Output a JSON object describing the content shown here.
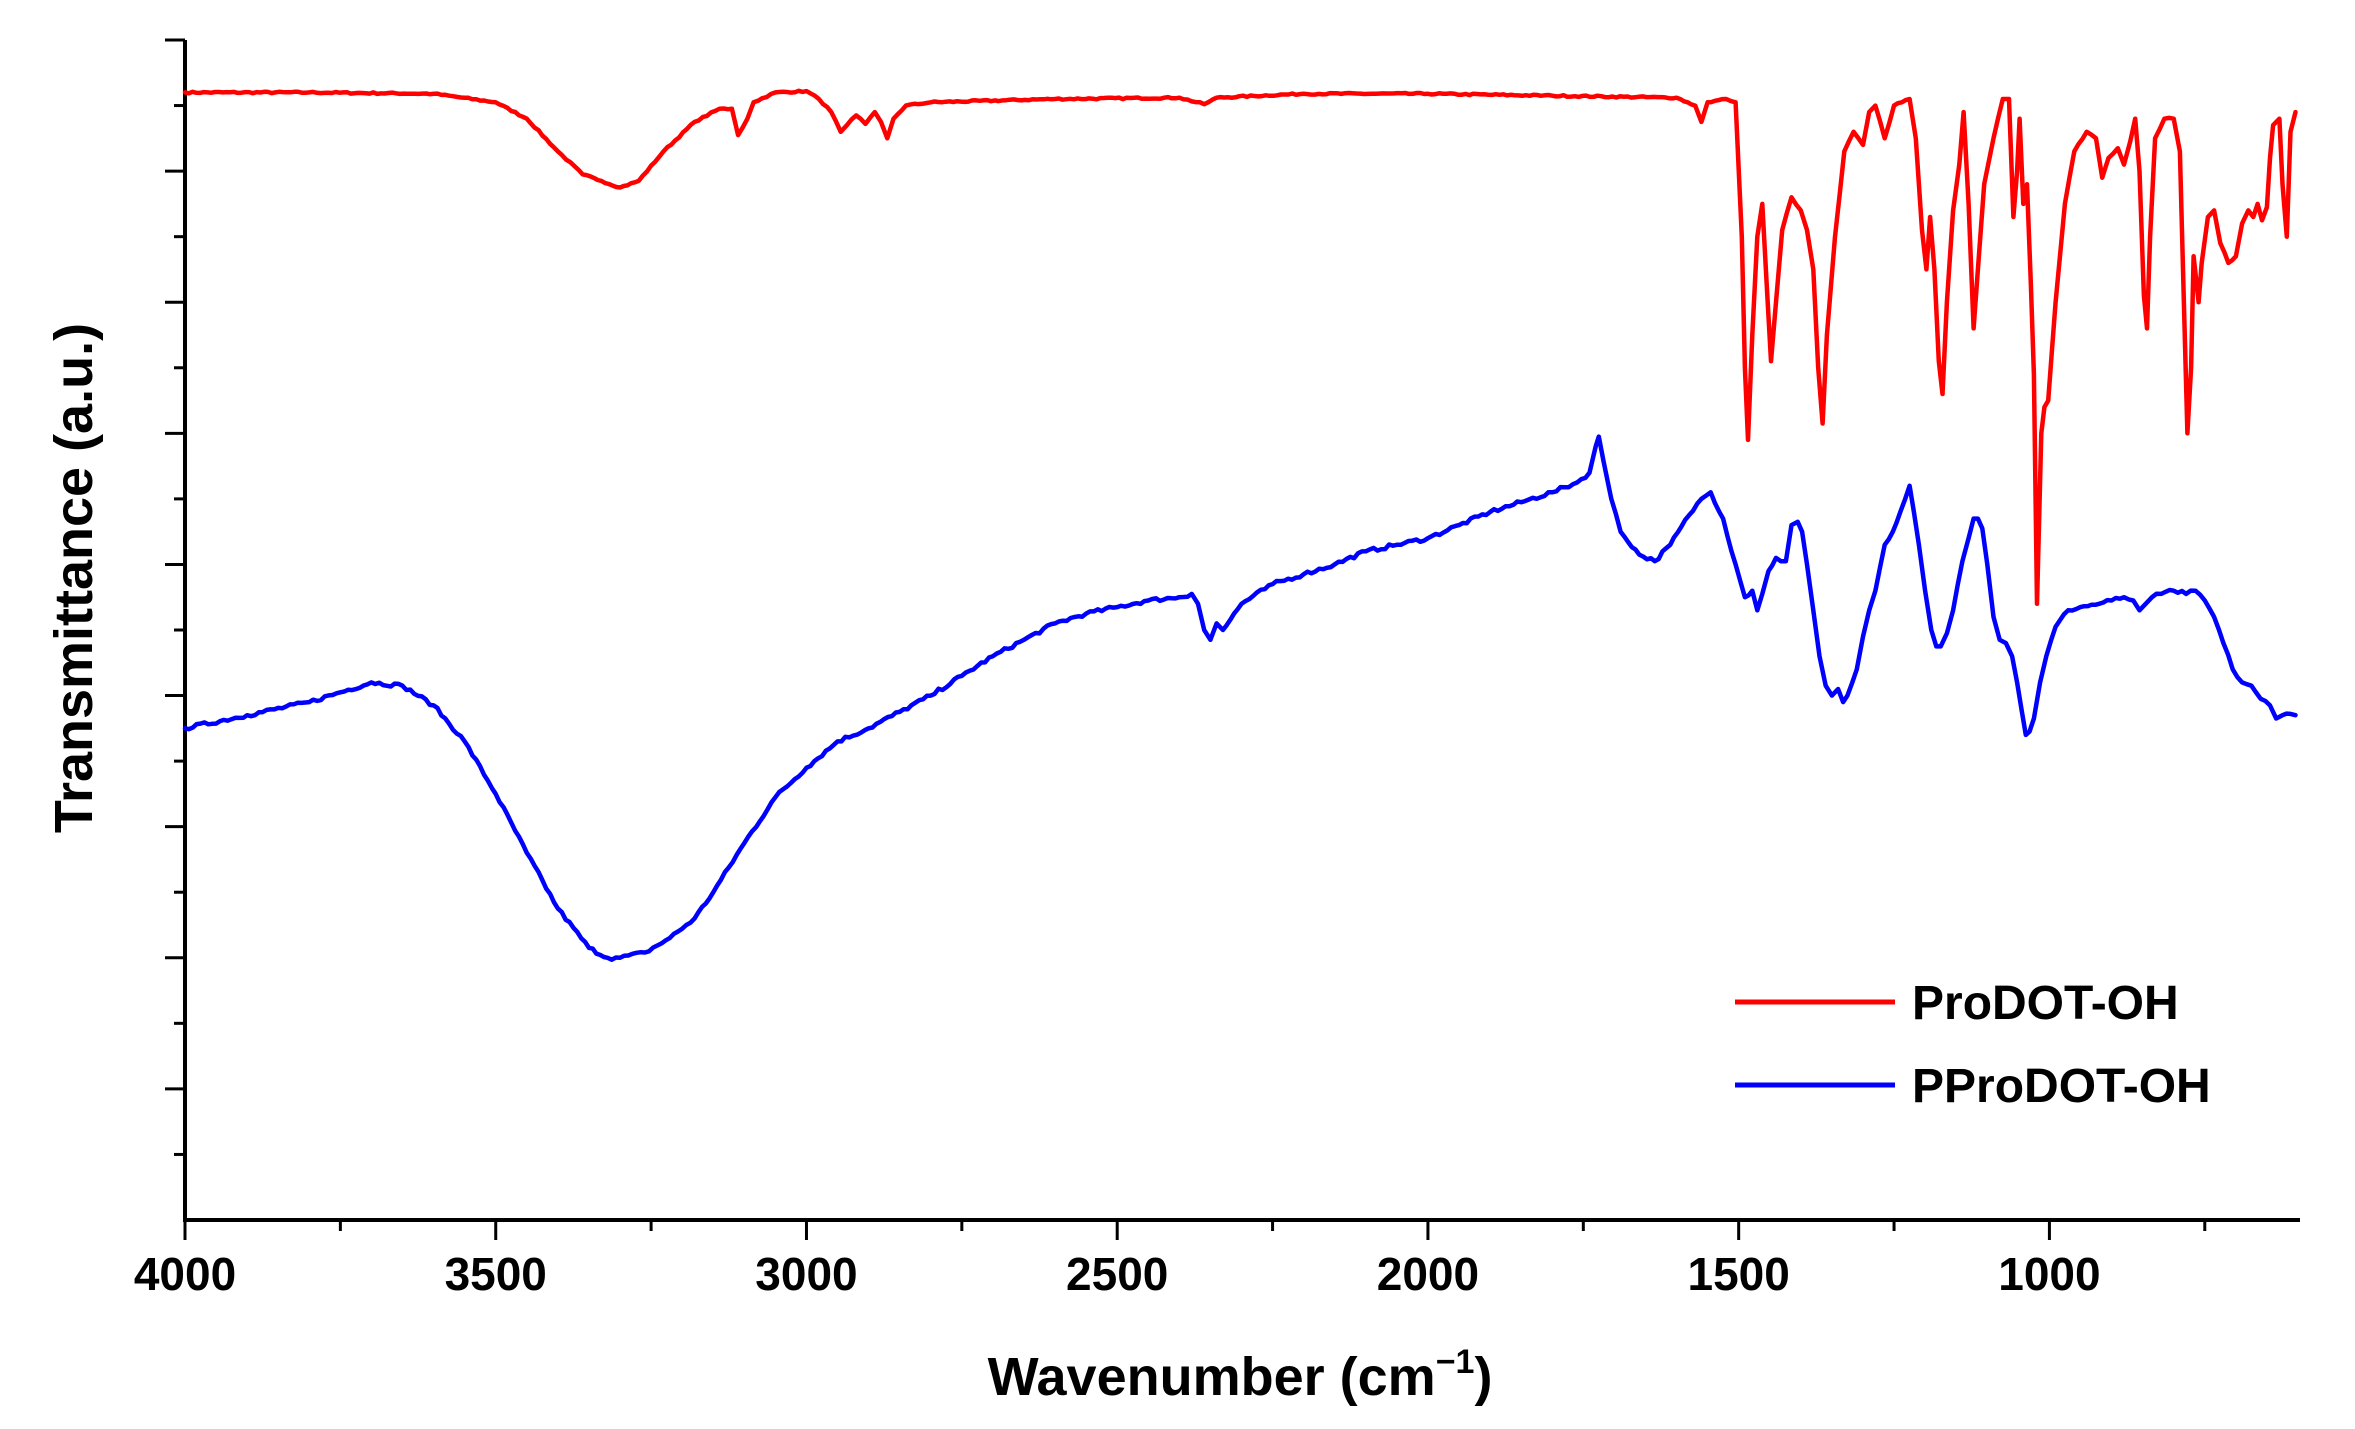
{
  "chart_data": {
    "type": "line",
    "title": "",
    "xlabel": "Wavenumber (cm",
    "xlabel_sup": "−1",
    "xlabel_close": ")",
    "ylabel": "Transmittance (a.u.)",
    "xlim": [
      4000,
      600
    ],
    "ylim": [
      0,
      18
    ],
    "x_reversed": true,
    "y_tick_labels_shown": false,
    "x_ticks": [
      4000,
      3500,
      3000,
      2500,
      2000,
      1500,
      1000
    ],
    "x_tick_labels": [
      "4000",
      "3500",
      "3000",
      "2500",
      "2000",
      "1500",
      "1000"
    ],
    "y_major_ticks": [
      2,
      4,
      6,
      8,
      10,
      12,
      14,
      16,
      18
    ],
    "y_minor_ticks": [
      1,
      3,
      5,
      7,
      9,
      11,
      13,
      15,
      17
    ],
    "legend_position": "bottom-right",
    "series": [
      {
        "name": "ProDOT-OH",
        "color": "#ff0000",
        "points": [
          [
            4000,
            17.2
          ],
          [
            3800,
            17.2
          ],
          [
            3600,
            17.18
          ],
          [
            3500,
            17.05
          ],
          [
            3450,
            16.8
          ],
          [
            3400,
            16.3
          ],
          [
            3360,
            15.95
          ],
          [
            3330,
            15.85
          ],
          [
            3300,
            15.75
          ],
          [
            3270,
            15.85
          ],
          [
            3230,
            16.3
          ],
          [
            3180,
            16.75
          ],
          [
            3140,
            16.95
          ],
          [
            3120,
            16.95
          ],
          [
            3110,
            16.55
          ],
          [
            3095,
            16.8
          ],
          [
            3085,
            17.05
          ],
          [
            3050,
            17.2
          ],
          [
            3000,
            17.22
          ],
          [
            2980,
            17.1
          ],
          [
            2960,
            16.9
          ],
          [
            2945,
            16.6
          ],
          [
            2935,
            16.7
          ],
          [
            2920,
            16.85
          ],
          [
            2905,
            16.72
          ],
          [
            2890,
            16.9
          ],
          [
            2880,
            16.75
          ],
          [
            2870,
            16.5
          ],
          [
            2860,
            16.8
          ],
          [
            2840,
            17.0
          ],
          [
            2800,
            17.05
          ],
          [
            2600,
            17.1
          ],
          [
            2400,
            17.12
          ],
          [
            2360,
            17.02
          ],
          [
            2340,
            17.12
          ],
          [
            2200,
            17.18
          ],
          [
            2000,
            17.18
          ],
          [
            1800,
            17.15
          ],
          [
            1600,
            17.12
          ],
          [
            1570,
            17.0
          ],
          [
            1560,
            16.75
          ],
          [
            1550,
            17.05
          ],
          [
            1520,
            17.1
          ],
          [
            1505,
            17.05
          ],
          [
            1495,
            15.0
          ],
          [
            1490,
            13.0
          ],
          [
            1485,
            11.9
          ],
          [
            1478,
            13.5
          ],
          [
            1470,
            15.0
          ],
          [
            1462,
            15.5
          ],
          [
            1455,
            14.3
          ],
          [
            1448,
            13.1
          ],
          [
            1440,
            14.0
          ],
          [
            1430,
            15.1
          ],
          [
            1415,
            15.6
          ],
          [
            1400,
            15.4
          ],
          [
            1390,
            15.1
          ],
          [
            1380,
            14.5
          ],
          [
            1372,
            13.0
          ],
          [
            1365,
            12.15
          ],
          [
            1358,
            13.5
          ],
          [
            1345,
            15.0
          ],
          [
            1330,
            16.3
          ],
          [
            1315,
            16.6
          ],
          [
            1300,
            16.4
          ],
          [
            1290,
            16.9
          ],
          [
            1280,
            17.0
          ],
          [
            1265,
            16.5
          ],
          [
            1250,
            17.0
          ],
          [
            1225,
            17.1
          ],
          [
            1215,
            16.5
          ],
          [
            1205,
            15.1
          ],
          [
            1198,
            14.5
          ],
          [
            1192,
            15.3
          ],
          [
            1185,
            14.5
          ],
          [
            1178,
            13.1
          ],
          [
            1172,
            12.6
          ],
          [
            1165,
            14.0
          ],
          [
            1155,
            15.4
          ],
          [
            1145,
            16.1
          ],
          [
            1138,
            16.9
          ],
          [
            1130,
            15.5
          ],
          [
            1122,
            13.6
          ],
          [
            1115,
            14.5
          ],
          [
            1105,
            15.8
          ],
          [
            1090,
            16.5
          ],
          [
            1075,
            17.1
          ],
          [
            1065,
            17.1
          ],
          [
            1058,
            15.3
          ],
          [
            1052,
            16.0
          ],
          [
            1048,
            16.8
          ],
          [
            1042,
            15.5
          ],
          [
            1036,
            15.8
          ],
          [
            1030,
            14.3
          ],
          [
            1025,
            12.9
          ],
          [
            1020,
            9.4
          ],
          [
            1013,
            12.0
          ],
          [
            1008,
            12.4
          ],
          [
            1002,
            12.5
          ],
          [
            990,
            14.0
          ],
          [
            975,
            15.5
          ],
          [
            960,
            16.3
          ],
          [
            940,
            16.6
          ],
          [
            925,
            16.5
          ],
          [
            915,
            15.9
          ],
          [
            905,
            16.2
          ],
          [
            890,
            16.35
          ],
          [
            880,
            16.1
          ],
          [
            870,
            16.45
          ],
          [
            862,
            16.8
          ],
          [
            855,
            16.0
          ],
          [
            848,
            14.1
          ],
          [
            843,
            13.6
          ],
          [
            838,
            15.0
          ],
          [
            830,
            16.5
          ],
          [
            815,
            16.8
          ],
          [
            800,
            16.8
          ],
          [
            790,
            16.3
          ],
          [
            785,
            14.5
          ],
          [
            778,
            12.0
          ],
          [
            772,
            13.0
          ],
          [
            768,
            14.7
          ],
          [
            760,
            14.0
          ],
          [
            755,
            14.6
          ],
          [
            745,
            15.3
          ],
          [
            735,
            15.4
          ],
          [
            725,
            14.9
          ],
          [
            712,
            14.6
          ],
          [
            700,
            14.7
          ],
          [
            690,
            15.2
          ],
          [
            680,
            15.4
          ],
          [
            672,
            15.3
          ],
          [
            665,
            15.5
          ],
          [
            658,
            15.25
          ],
          [
            650,
            15.45
          ],
          [
            645,
            16.2
          ],
          [
            640,
            16.7
          ],
          [
            630,
            16.8
          ],
          [
            625,
            15.8
          ],
          [
            618,
            15.0
          ],
          [
            612,
            16.6
          ],
          [
            604,
            16.9
          ]
        ]
      },
      {
        "name": "PProDOT-OH",
        "color": "#0000ff",
        "points": [
          [
            4000,
            7.5
          ],
          [
            3900,
            7.7
          ],
          [
            3800,
            7.9
          ],
          [
            3750,
            8.05
          ],
          [
            3700,
            8.2
          ],
          [
            3650,
            8.15
          ],
          [
            3600,
            7.85
          ],
          [
            3550,
            7.3
          ],
          [
            3500,
            6.5
          ],
          [
            3450,
            5.6
          ],
          [
            3400,
            4.75
          ],
          [
            3350,
            4.15
          ],
          [
            3320,
            4.0
          ],
          [
            3300,
            4.0
          ],
          [
            3260,
            4.08
          ],
          [
            3220,
            4.3
          ],
          [
            3180,
            4.6
          ],
          [
            3150,
            5.0
          ],
          [
            3100,
            5.75
          ],
          [
            3050,
            6.45
          ],
          [
            3000,
            6.9
          ],
          [
            2950,
            7.3
          ],
          [
            2900,
            7.5
          ],
          [
            2850,
            7.75
          ],
          [
            2800,
            8.0
          ],
          [
            2750,
            8.3
          ],
          [
            2700,
            8.6
          ],
          [
            2650,
            8.85
          ],
          [
            2600,
            9.1
          ],
          [
            2550,
            9.25
          ],
          [
            2500,
            9.35
          ],
          [
            2450,
            9.45
          ],
          [
            2400,
            9.5
          ],
          [
            2380,
            9.55
          ],
          [
            2370,
            9.4
          ],
          [
            2360,
            9.0
          ],
          [
            2350,
            8.85
          ],
          [
            2340,
            9.1
          ],
          [
            2330,
            9.0
          ],
          [
            2300,
            9.4
          ],
          [
            2250,
            9.7
          ],
          [
            2200,
            9.85
          ],
          [
            2150,
            10.0
          ],
          [
            2100,
            10.2
          ],
          [
            2050,
            10.3
          ],
          [
            2000,
            10.4
          ],
          [
            1950,
            10.6
          ],
          [
            1900,
            10.8
          ],
          [
            1850,
            10.95
          ],
          [
            1800,
            11.1
          ],
          [
            1760,
            11.25
          ],
          [
            1740,
            11.4
          ],
          [
            1730,
            11.8
          ],
          [
            1725,
            11.95
          ],
          [
            1718,
            11.6
          ],
          [
            1705,
            11.0
          ],
          [
            1690,
            10.5
          ],
          [
            1660,
            10.15
          ],
          [
            1635,
            10.05
          ],
          [
            1610,
            10.3
          ],
          [
            1580,
            10.75
          ],
          [
            1560,
            11.0
          ],
          [
            1545,
            11.1
          ],
          [
            1525,
            10.7
          ],
          [
            1505,
            10.0
          ],
          [
            1490,
            9.5
          ],
          [
            1478,
            9.6
          ],
          [
            1470,
            9.3
          ],
          [
            1462,
            9.55
          ],
          [
            1452,
            9.9
          ],
          [
            1440,
            10.1
          ],
          [
            1432,
            10.05
          ],
          [
            1424,
            10.05
          ],
          [
            1415,
            10.6
          ],
          [
            1405,
            10.65
          ],
          [
            1398,
            10.5
          ],
          [
            1390,
            10.0
          ],
          [
            1380,
            9.3
          ],
          [
            1370,
            8.6
          ],
          [
            1360,
            8.15
          ],
          [
            1350,
            8.0
          ],
          [
            1340,
            8.1
          ],
          [
            1332,
            7.9
          ],
          [
            1325,
            8.0
          ],
          [
            1310,
            8.4
          ],
          [
            1300,
            8.9
          ],
          [
            1290,
            9.3
          ],
          [
            1280,
            9.6
          ],
          [
            1265,
            10.3
          ],
          [
            1252,
            10.5
          ],
          [
            1240,
            10.8
          ],
          [
            1232,
            11.0
          ],
          [
            1225,
            11.2
          ],
          [
            1218,
            10.8
          ],
          [
            1210,
            10.3
          ],
          [
            1200,
            9.6
          ],
          [
            1190,
            9.0
          ],
          [
            1182,
            8.75
          ],
          [
            1175,
            8.75
          ],
          [
            1165,
            8.95
          ],
          [
            1155,
            9.3
          ],
          [
            1140,
            10.05
          ],
          [
            1130,
            10.4
          ],
          [
            1122,
            10.7
          ],
          [
            1115,
            10.7
          ],
          [
            1108,
            10.55
          ],
          [
            1100,
            10.0
          ],
          [
            1090,
            9.2
          ],
          [
            1080,
            8.85
          ],
          [
            1070,
            8.8
          ],
          [
            1060,
            8.6
          ],
          [
            1052,
            8.2
          ],
          [
            1045,
            7.8
          ],
          [
            1038,
            7.4
          ],
          [
            1032,
            7.45
          ],
          [
            1025,
            7.65
          ],
          [
            1015,
            8.2
          ],
          [
            1005,
            8.6
          ],
          [
            990,
            9.05
          ],
          [
            970,
            9.3
          ],
          [
            950,
            9.35
          ],
          [
            920,
            9.4
          ],
          [
            900,
            9.45
          ],
          [
            880,
            9.5
          ],
          [
            865,
            9.45
          ],
          [
            855,
            9.3
          ],
          [
            845,
            9.4
          ],
          [
            835,
            9.5
          ],
          [
            820,
            9.55
          ],
          [
            800,
            9.6
          ],
          [
            780,
            9.55
          ],
          [
            765,
            9.6
          ],
          [
            750,
            9.45
          ],
          [
            735,
            9.2
          ],
          [
            720,
            8.8
          ],
          [
            705,
            8.4
          ],
          [
            690,
            8.2
          ],
          [
            675,
            8.15
          ],
          [
            660,
            7.95
          ],
          [
            645,
            7.85
          ],
          [
            635,
            7.65
          ],
          [
            625,
            7.7
          ],
          [
            612,
            7.72
          ],
          [
            604,
            7.7
          ]
        ]
      }
    ]
  }
}
